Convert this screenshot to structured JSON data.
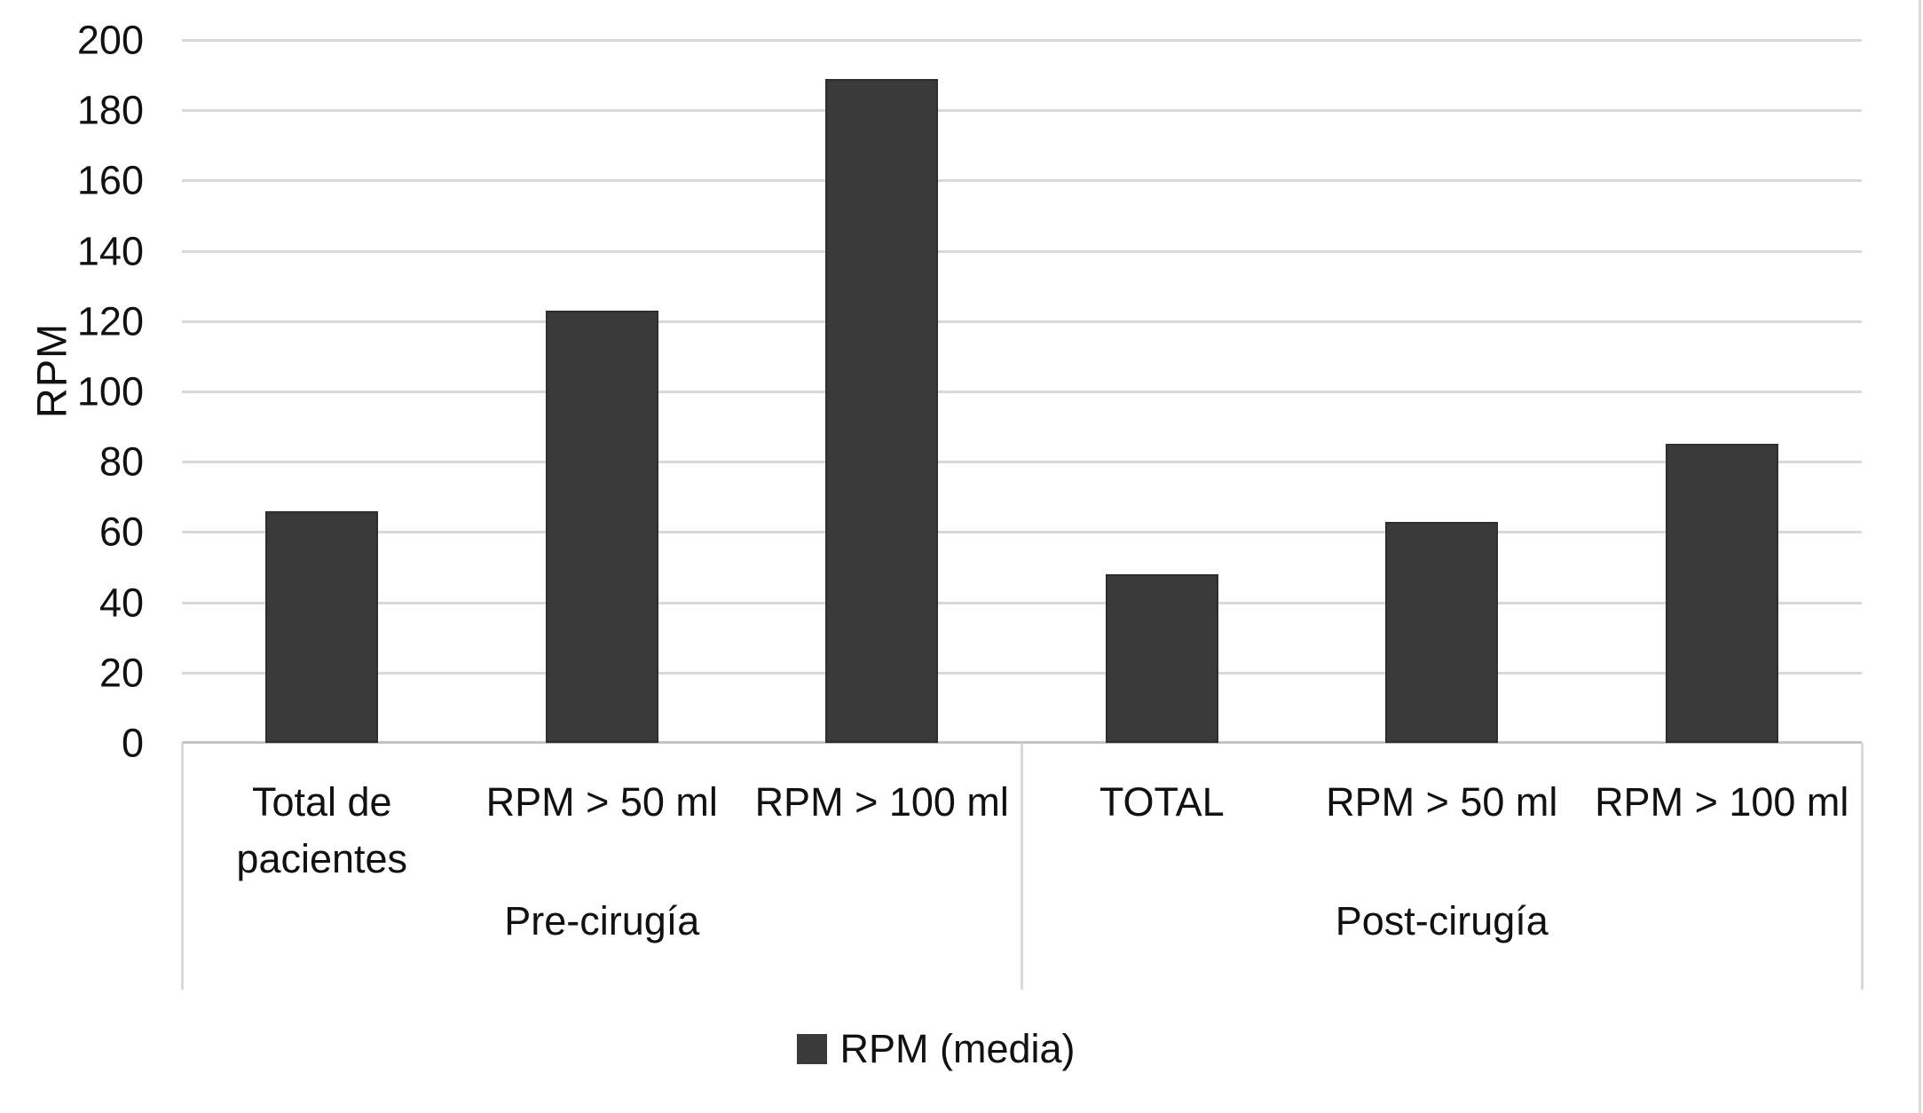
{
  "chart_data": {
    "type": "bar",
    "title": "",
    "xlabel": "",
    "ylabel": "RPM",
    "ylim": [
      0,
      200
    ],
    "ytick_step": 20,
    "ytick_labels": [
      "0",
      "20",
      "40",
      "60",
      "80",
      "100",
      "120",
      "140",
      "160",
      "180",
      "200"
    ],
    "grid": "horizontal",
    "categories": [
      "Total de pacientes",
      "RPM > 50 ml",
      "RPM > 100 ml",
      "TOTAL",
      "RPM > 50 ml",
      "RPM > 100 ml"
    ],
    "category_groups": [
      {
        "label": "Pre-cirugía",
        "span": 3
      },
      {
        "label": "Post-cirugía",
        "span": 3
      }
    ],
    "series": [
      {
        "name": "RPM (media)",
        "values": [
          66,
          123,
          189,
          48,
          63,
          85
        ]
      }
    ],
    "legend": {
      "label": "RPM (media)",
      "position": "bottom-center",
      "marker": "square"
    },
    "colors": {
      "bar_fill": "#3A3A3A",
      "bar_border": "#2E2E2E",
      "gridline": "#D9D9D9",
      "axis_line": "#C4C4C4",
      "separator": "#D9D9D9",
      "chart_border": "#D9D9D9",
      "text": "#111111"
    }
  },
  "y_axis": {
    "title": "RPM"
  },
  "legend": {
    "label": "RPM (media)"
  }
}
